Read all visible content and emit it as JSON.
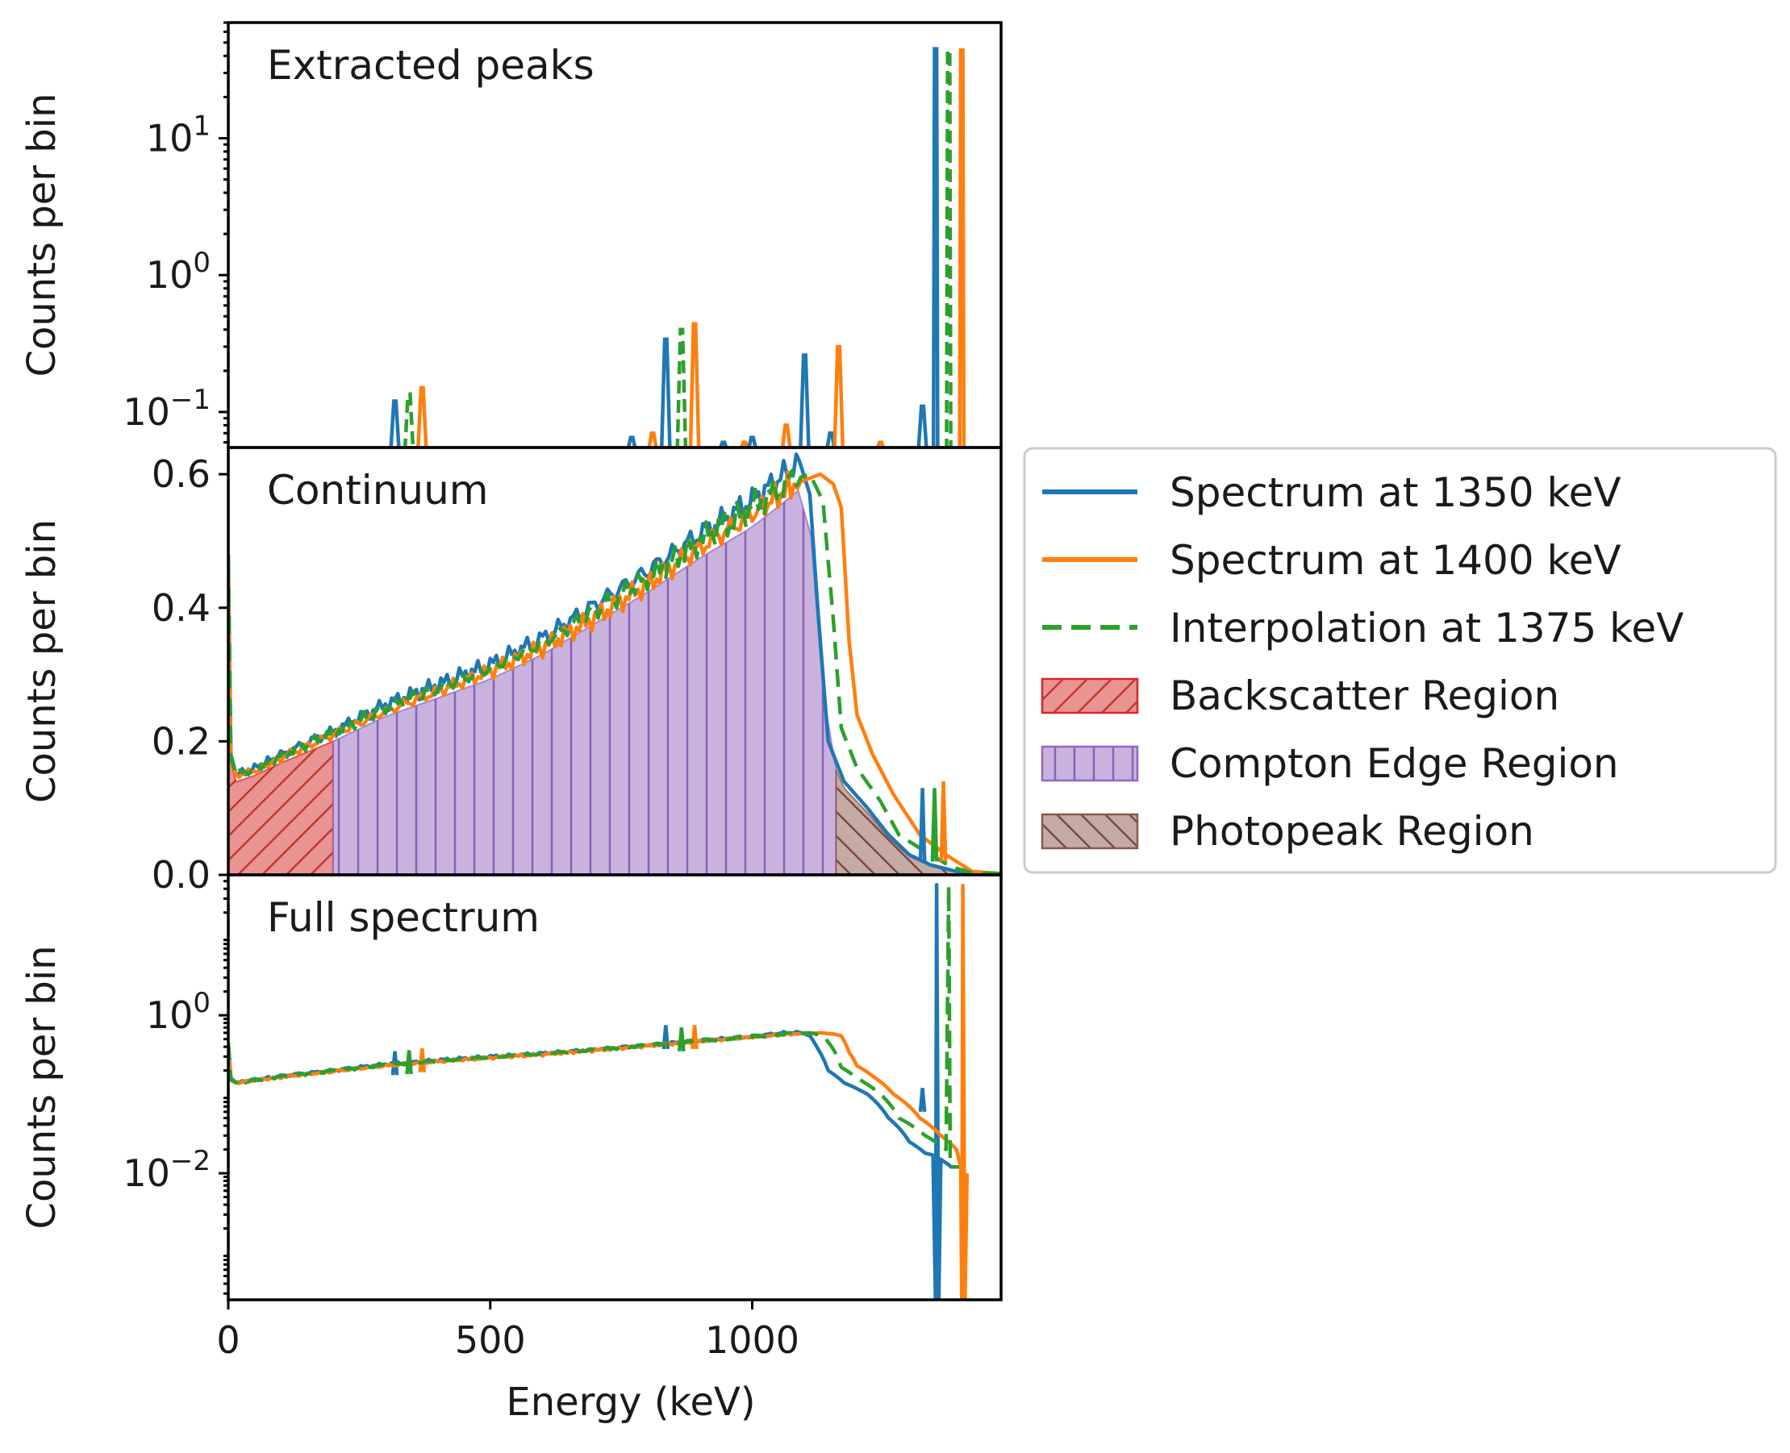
{
  "colors": {
    "s1350": "#1f77b4",
    "s1400": "#ff7f0e",
    "interp": "#2ca02c",
    "backscatter": "#d62728",
    "compton": "#9467bd",
    "photopeak": "#8c564b"
  },
  "chart_data": [
    {
      "type": "line",
      "title": "Extracted peaks",
      "ylabel": "Counts per bin",
      "yscale": "log",
      "xlim": [
        0,
        1475
      ],
      "ylim": [
        0.055,
        70
      ],
      "yticks": [
        {
          "value": 0.1,
          "base": "10",
          "exp": "−1"
        },
        {
          "value": 1,
          "base": "10",
          "exp": "0"
        },
        {
          "value": 10,
          "base": "10",
          "exp": "1"
        }
      ],
      "series": [
        {
          "name": "Spectrum at 1350 keV",
          "color_key": "s1350",
          "peaks": [
            [
              318,
              0.12
            ],
            [
              770,
              0.065
            ],
            [
              835,
              0.34
            ],
            [
              945,
              0.06
            ],
            [
              1000,
              0.065
            ],
            [
              1100,
              0.26
            ],
            [
              1150,
              0.07
            ],
            [
              1325,
              0.11
            ],
            [
              1350,
              45
            ]
          ]
        },
        {
          "name": "Spectrum at 1400 keV",
          "color_key": "s1400",
          "peaks": [
            [
              370,
              0.15
            ],
            [
              810,
              0.07
            ],
            [
              890,
              0.44
            ],
            [
              985,
              0.06
            ],
            [
              1065,
              0.08
            ],
            [
              1165,
              0.3
            ],
            [
              1245,
              0.06
            ],
            [
              1400,
              44
            ]
          ]
        },
        {
          "name": "Interpolation at 1375 keV",
          "color_key": "interp",
          "dashed": true,
          "peaks": [
            [
              345,
              0.135
            ],
            [
              865,
              0.4
            ],
            [
              1375,
              44
            ]
          ]
        }
      ]
    },
    {
      "type": "line",
      "title": "Continuum",
      "ylabel": "Counts per bin",
      "yscale": "linear",
      "xlim": [
        0,
        1475
      ],
      "ylim": [
        0,
        0.64
      ],
      "yticks": [
        {
          "value": 0.0,
          "label": "0.0"
        },
        {
          "value": 0.2,
          "label": "0.2"
        },
        {
          "value": 0.4,
          "label": "0.4"
        },
        {
          "value": 0.6,
          "label": "0.6"
        }
      ],
      "regions": [
        {
          "name": "Backscatter Region",
          "color_key": "backscatter",
          "x": [
            0,
            200
          ],
          "hatch": "diag"
        },
        {
          "name": "Compton Edge Region",
          "color_key": "compton",
          "x": [
            200,
            1160
          ],
          "hatch": "vert"
        },
        {
          "name": "Photopeak Region",
          "color_key": "photopeak",
          "x": [
            1160,
            1400
          ],
          "hatch": "back"
        }
      ],
      "series": [
        {
          "name": "Spectrum at 1350 keV",
          "color_key": "s1350",
          "points": [
            [
              0,
              0.48
            ],
            [
              5,
              0.18
            ],
            [
              15,
              0.15
            ],
            [
              50,
              0.16
            ],
            [
              100,
              0.18
            ],
            [
              200,
              0.215
            ],
            [
              300,
              0.255
            ],
            [
              400,
              0.285
            ],
            [
              500,
              0.315
            ],
            [
              600,
              0.355
            ],
            [
              700,
              0.405
            ],
            [
              800,
              0.455
            ],
            [
              900,
              0.51
            ],
            [
              1000,
              0.56
            ],
            [
              1060,
              0.6
            ],
            [
              1090,
              0.62
            ],
            [
              1110,
              0.57
            ],
            [
              1125,
              0.4
            ],
            [
              1145,
              0.2
            ],
            [
              1175,
              0.14
            ],
            [
              1220,
              0.1
            ],
            [
              1260,
              0.06
            ],
            [
              1300,
              0.03
            ],
            [
              1340,
              0.015
            ],
            [
              1400,
              0.003
            ],
            [
              1475,
              0.002
            ]
          ]
        },
        {
          "name": "Spectrum at 1400 keV",
          "color_key": "s1400",
          "points": [
            [
              0,
              0.46
            ],
            [
              5,
              0.17
            ],
            [
              15,
              0.15
            ],
            [
              50,
              0.155
            ],
            [
              100,
              0.175
            ],
            [
              200,
              0.21
            ],
            [
              300,
              0.245
            ],
            [
              400,
              0.275
            ],
            [
              500,
              0.305
            ],
            [
              600,
              0.34
            ],
            [
              700,
              0.385
            ],
            [
              800,
              0.435
            ],
            [
              900,
              0.49
            ],
            [
              1000,
              0.54
            ],
            [
              1080,
              0.585
            ],
            [
              1130,
              0.6
            ],
            [
              1155,
              0.585
            ],
            [
              1170,
              0.55
            ],
            [
              1185,
              0.35
            ],
            [
              1200,
              0.24
            ],
            [
              1230,
              0.18
            ],
            [
              1270,
              0.12
            ],
            [
              1320,
              0.06
            ],
            [
              1370,
              0.03
            ],
            [
              1420,
              0.005
            ],
            [
              1475,
              0.002
            ]
          ]
        },
        {
          "name": "Interpolation at 1375 keV",
          "color_key": "interp",
          "dashed": true,
          "points": [
            [
              0,
              0.47
            ],
            [
              5,
              0.175
            ],
            [
              15,
              0.15
            ],
            [
              50,
              0.158
            ],
            [
              100,
              0.178
            ],
            [
              200,
              0.213
            ],
            [
              300,
              0.25
            ],
            [
              400,
              0.28
            ],
            [
              500,
              0.31
            ],
            [
              600,
              0.348
            ],
            [
              700,
              0.395
            ],
            [
              800,
              0.445
            ],
            [
              900,
              0.5
            ],
            [
              1000,
              0.55
            ],
            [
              1070,
              0.59
            ],
            [
              1110,
              0.6
            ],
            [
              1135,
              0.56
            ],
            [
              1155,
              0.38
            ],
            [
              1170,
              0.22
            ],
            [
              1200,
              0.16
            ],
            [
              1245,
              0.11
            ],
            [
              1280,
              0.06
            ],
            [
              1330,
              0.035
            ],
            [
              1380,
              0.012
            ],
            [
              1420,
              0.003
            ],
            [
              1475,
              0.002
            ]
          ]
        }
      ],
      "spikes": [
        {
          "color_key": "s1350",
          "x": 1325,
          "y": 0.13
        },
        {
          "color_key": "interp",
          "x": 1348,
          "y": 0.13
        },
        {
          "color_key": "s1400",
          "x": 1365,
          "y": 0.14
        }
      ]
    },
    {
      "type": "line",
      "title": "Full spectrum",
      "xlabel": "Energy (keV)",
      "ylabel": "Counts per bin",
      "yscale": "log",
      "xlim": [
        0,
        1475
      ],
      "ylim": [
        0.00025,
        60
      ],
      "xticks": [
        0,
        500,
        1000
      ],
      "yticks": [
        {
          "value": 0.01,
          "base": "10",
          "exp": "−2"
        },
        {
          "value": 1,
          "base": "10",
          "exp": "0"
        }
      ],
      "series": [
        {
          "name": "Spectrum at 1350 keV",
          "color_key": "s1350",
          "points": [
            [
              0,
              0.45
            ],
            [
              5,
              0.16
            ],
            [
              15,
              0.14
            ],
            [
              100,
              0.17
            ],
            [
              200,
              0.2
            ],
            [
              300,
              0.24
            ],
            [
              400,
              0.27
            ],
            [
              500,
              0.3
            ],
            [
              600,
              0.33
            ],
            [
              700,
              0.37
            ],
            [
              800,
              0.42
            ],
            [
              900,
              0.48
            ],
            [
              1000,
              0.54
            ],
            [
              1060,
              0.6
            ],
            [
              1090,
              0.61
            ],
            [
              1110,
              0.55
            ],
            [
              1125,
              0.38
            ],
            [
              1145,
              0.2
            ],
            [
              1175,
              0.14
            ],
            [
              1220,
              0.1
            ],
            [
              1260,
              0.05
            ],
            [
              1300,
              0.025
            ],
            [
              1330,
              0.018
            ],
            [
              1345,
              0.017
            ],
            [
              1350,
              0.0002
            ],
            [
              1352,
              45
            ],
            [
              1356,
              0.0002
            ],
            [
              1360,
              0.015
            ],
            [
              1380,
              0.012
            ],
            [
              1400,
              0.012
            ]
          ],
          "spikes": [
            [
              318,
              0.35
            ],
            [
              835,
              0.75
            ],
            [
              1325,
              0.12
            ]
          ]
        },
        {
          "name": "Spectrum at 1400 keV",
          "color_key": "s1400",
          "points": [
            [
              0,
              0.44
            ],
            [
              5,
              0.15
            ],
            [
              15,
              0.14
            ],
            [
              100,
              0.165
            ],
            [
              200,
              0.195
            ],
            [
              300,
              0.23
            ],
            [
              400,
              0.26
            ],
            [
              500,
              0.29
            ],
            [
              600,
              0.32
            ],
            [
              700,
              0.36
            ],
            [
              800,
              0.41
            ],
            [
              900,
              0.47
            ],
            [
              1000,
              0.53
            ],
            [
              1080,
              0.585
            ],
            [
              1130,
              0.6
            ],
            [
              1155,
              0.58
            ],
            [
              1170,
              0.55
            ],
            [
              1185,
              0.34
            ],
            [
              1200,
              0.23
            ],
            [
              1230,
              0.17
            ],
            [
              1270,
              0.1
            ],
            [
              1320,
              0.05
            ],
            [
              1360,
              0.03
            ],
            [
              1390,
              0.02
            ],
            [
              1398,
              0.012
            ],
            [
              1400,
              0.0002
            ],
            [
              1402,
              44
            ],
            [
              1406,
              0.0002
            ],
            [
              1410,
              0.01
            ]
          ],
          "spikes": [
            [
              370,
              0.38
            ],
            [
              890,
              0.75
            ]
          ]
        },
        {
          "name": "Interpolation at 1375 keV",
          "color_key": "interp",
          "dashed": true,
          "points": [
            [
              0,
              0.45
            ],
            [
              5,
              0.155
            ],
            [
              15,
              0.14
            ],
            [
              100,
              0.168
            ],
            [
              200,
              0.198
            ],
            [
              300,
              0.235
            ],
            [
              400,
              0.265
            ],
            [
              500,
              0.295
            ],
            [
              600,
              0.325
            ],
            [
              700,
              0.365
            ],
            [
              800,
              0.415
            ],
            [
              900,
              0.475
            ],
            [
              1000,
              0.535
            ],
            [
              1070,
              0.59
            ],
            [
              1110,
              0.6
            ],
            [
              1135,
              0.55
            ],
            [
              1155,
              0.37
            ],
            [
              1170,
              0.22
            ],
            [
              1200,
              0.16
            ],
            [
              1245,
              0.1
            ],
            [
              1280,
              0.05
            ],
            [
              1330,
              0.03
            ],
            [
              1370,
              0.02
            ],
            [
              1375,
              44
            ],
            [
              1378,
              0.012
            ],
            [
              1395,
              0.012
            ]
          ],
          "spikes": [
            [
              345,
              0.36
            ],
            [
              865,
              0.7
            ]
          ]
        }
      ]
    }
  ],
  "legend": {
    "items": [
      {
        "label": "Spectrum at 1350 keV",
        "kind": "line",
        "color_key": "s1350"
      },
      {
        "label": "Spectrum at 1400 keV",
        "kind": "line",
        "color_key": "s1400"
      },
      {
        "label": "Interpolation at 1375 keV",
        "kind": "dash",
        "color_key": "interp"
      },
      {
        "label": "Backscatter Region",
        "kind": "patch",
        "color_key": "backscatter",
        "hatch": "diag"
      },
      {
        "label": "Compton Edge Region",
        "kind": "patch",
        "color_key": "compton",
        "hatch": "vert"
      },
      {
        "label": "Photopeak Region",
        "kind": "patch",
        "color_key": "photopeak",
        "hatch": "back"
      }
    ]
  }
}
